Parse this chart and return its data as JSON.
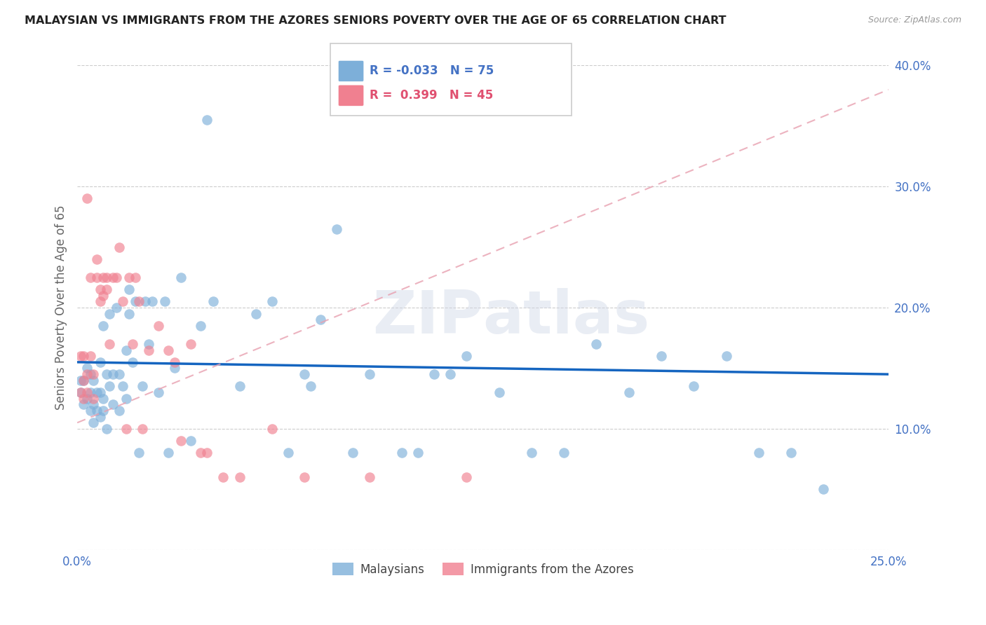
{
  "title": "MALAYSIAN VS IMMIGRANTS FROM THE AZORES SENIORS POVERTY OVER THE AGE OF 65 CORRELATION CHART",
  "source": "Source: ZipAtlas.com",
  "ylabel": "Seniors Poverty Over the Age of 65",
  "x_min": 0.0,
  "x_max": 0.25,
  "y_min": 0.0,
  "y_max": 0.4,
  "x_ticks": [
    0.0,
    0.05,
    0.1,
    0.15,
    0.2,
    0.25
  ],
  "x_tick_labels": [
    "0.0%",
    "",
    "",
    "",
    "",
    "25.0%"
  ],
  "y_ticks": [
    0.0,
    0.1,
    0.2,
    0.3,
    0.4
  ],
  "y_tick_labels_right": [
    "",
    "10.0%",
    "20.0%",
    "30.0%",
    "40.0%"
  ],
  "malaysians_color": "#7dafd9",
  "azores_color": "#f08090",
  "trend_malaysians_color": "#1565c0",
  "trend_azores_color": "#e8a0b0",
  "watermark": "ZIPatlas",
  "malaysians_x": [
    0.001,
    0.001,
    0.002,
    0.002,
    0.003,
    0.003,
    0.004,
    0.004,
    0.004,
    0.005,
    0.005,
    0.005,
    0.006,
    0.006,
    0.007,
    0.007,
    0.007,
    0.008,
    0.008,
    0.008,
    0.009,
    0.009,
    0.01,
    0.01,
    0.011,
    0.011,
    0.012,
    0.013,
    0.013,
    0.014,
    0.015,
    0.015,
    0.016,
    0.016,
    0.017,
    0.018,
    0.019,
    0.02,
    0.021,
    0.022,
    0.023,
    0.025,
    0.027,
    0.028,
    0.03,
    0.032,
    0.035,
    0.038,
    0.04,
    0.042,
    0.05,
    0.055,
    0.06,
    0.065,
    0.07,
    0.072,
    0.075,
    0.08,
    0.085,
    0.09,
    0.1,
    0.105,
    0.11,
    0.115,
    0.12,
    0.13,
    0.14,
    0.15,
    0.16,
    0.17,
    0.18,
    0.19,
    0.2,
    0.21,
    0.22,
    0.23
  ],
  "malaysians_y": [
    0.13,
    0.14,
    0.12,
    0.14,
    0.125,
    0.15,
    0.115,
    0.13,
    0.145,
    0.105,
    0.12,
    0.14,
    0.115,
    0.13,
    0.11,
    0.13,
    0.155,
    0.115,
    0.125,
    0.185,
    0.1,
    0.145,
    0.135,
    0.195,
    0.12,
    0.145,
    0.2,
    0.115,
    0.145,
    0.135,
    0.125,
    0.165,
    0.215,
    0.195,
    0.155,
    0.205,
    0.08,
    0.135,
    0.205,
    0.17,
    0.205,
    0.13,
    0.205,
    0.08,
    0.15,
    0.225,
    0.09,
    0.185,
    0.355,
    0.205,
    0.135,
    0.195,
    0.205,
    0.08,
    0.145,
    0.135,
    0.19,
    0.265,
    0.08,
    0.145,
    0.08,
    0.08,
    0.145,
    0.145,
    0.16,
    0.13,
    0.08,
    0.08,
    0.17,
    0.13,
    0.16,
    0.135,
    0.16,
    0.08,
    0.08,
    0.05
  ],
  "azores_x": [
    0.001,
    0.001,
    0.002,
    0.002,
    0.002,
    0.003,
    0.003,
    0.003,
    0.004,
    0.004,
    0.005,
    0.005,
    0.006,
    0.006,
    0.007,
    0.007,
    0.008,
    0.008,
    0.009,
    0.009,
    0.01,
    0.011,
    0.012,
    0.013,
    0.014,
    0.015,
    0.016,
    0.017,
    0.018,
    0.019,
    0.02,
    0.022,
    0.025,
    0.028,
    0.03,
    0.032,
    0.035,
    0.038,
    0.04,
    0.045,
    0.05,
    0.06,
    0.07,
    0.09,
    0.12
  ],
  "azores_y": [
    0.16,
    0.13,
    0.125,
    0.14,
    0.16,
    0.13,
    0.145,
    0.29,
    0.16,
    0.225,
    0.125,
    0.145,
    0.24,
    0.225,
    0.205,
    0.215,
    0.21,
    0.225,
    0.215,
    0.225,
    0.17,
    0.225,
    0.225,
    0.25,
    0.205,
    0.1,
    0.225,
    0.17,
    0.225,
    0.205,
    0.1,
    0.165,
    0.185,
    0.165,
    0.155,
    0.09,
    0.17,
    0.08,
    0.08,
    0.06,
    0.06,
    0.1,
    0.06,
    0.06,
    0.06
  ]
}
